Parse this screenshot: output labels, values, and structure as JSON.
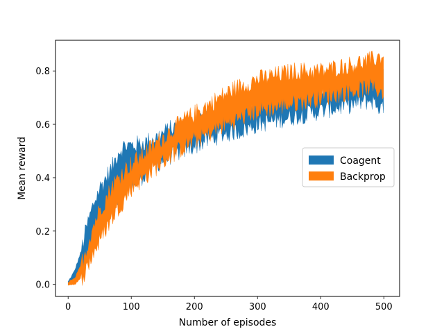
{
  "chart_data": {
    "type": "area",
    "title": "",
    "xlabel": "Number of episodes",
    "ylabel": "Mean reward",
    "xlim": [
      -20,
      525
    ],
    "ylim": [
      -0.045,
      0.915
    ],
    "xticks": [
      0,
      100,
      200,
      300,
      400,
      500
    ],
    "yticks": [
      0.0,
      0.2,
      0.4,
      0.6,
      0.8
    ],
    "xtick_labels": [
      "0",
      "100",
      "200",
      "300",
      "400",
      "500"
    ],
    "ytick_labels": [
      "0.0",
      "0.2",
      "0.4",
      "0.6",
      "0.8"
    ],
    "legend_position": "center-right",
    "series": [
      {
        "name": "Coagent",
        "color": "#1f77b4",
        "note": "shaded band (mean ± variability) over 500 episodes",
        "x": [
          0,
          10,
          20,
          30,
          40,
          50,
          60,
          70,
          80,
          90,
          100,
          120,
          140,
          160,
          180,
          200,
          220,
          240,
          260,
          280,
          300,
          320,
          340,
          360,
          380,
          400,
          420,
          440,
          460,
          480,
          500
        ],
        "lower": [
          0.0,
          0.01,
          0.05,
          0.11,
          0.18,
          0.23,
          0.26,
          0.3,
          0.32,
          0.36,
          0.37,
          0.41,
          0.45,
          0.48,
          0.5,
          0.52,
          0.54,
          0.56,
          0.57,
          0.58,
          0.6,
          0.61,
          0.62,
          0.63,
          0.64,
          0.65,
          0.66,
          0.67,
          0.68,
          0.69,
          0.65
        ],
        "upper": [
          0.01,
          0.05,
          0.12,
          0.22,
          0.3,
          0.36,
          0.4,
          0.44,
          0.5,
          0.52,
          0.52,
          0.53,
          0.55,
          0.58,
          0.6,
          0.61,
          0.63,
          0.65,
          0.67,
          0.69,
          0.7,
          0.71,
          0.72,
          0.72,
          0.73,
          0.74,
          0.75,
          0.77,
          0.78,
          0.8,
          0.78
        ]
      },
      {
        "name": "Backprop",
        "color": "#ff7f0e",
        "note": "shaded band (mean ± variability) over 500 episodes",
        "x": [
          0,
          10,
          20,
          30,
          40,
          50,
          60,
          70,
          80,
          90,
          100,
          120,
          140,
          160,
          180,
          200,
          220,
          240,
          260,
          280,
          300,
          320,
          340,
          360,
          380,
          400,
          420,
          440,
          460,
          480,
          500
        ],
        "lower": [
          0.0,
          0.0,
          0.02,
          0.06,
          0.12,
          0.16,
          0.21,
          0.25,
          0.29,
          0.32,
          0.36,
          0.4,
          0.44,
          0.48,
          0.51,
          0.54,
          0.56,
          0.59,
          0.61,
          0.63,
          0.65,
          0.66,
          0.67,
          0.68,
          0.69,
          0.7,
          0.71,
          0.72,
          0.73,
          0.74,
          0.72
        ],
        "upper": [
          0.01,
          0.02,
          0.07,
          0.14,
          0.22,
          0.28,
          0.32,
          0.37,
          0.4,
          0.43,
          0.45,
          0.49,
          0.53,
          0.57,
          0.61,
          0.64,
          0.67,
          0.7,
          0.73,
          0.75,
          0.77,
          0.78,
          0.79,
          0.8,
          0.8,
          0.8,
          0.81,
          0.82,
          0.83,
          0.84,
          0.86
        ]
      }
    ]
  }
}
